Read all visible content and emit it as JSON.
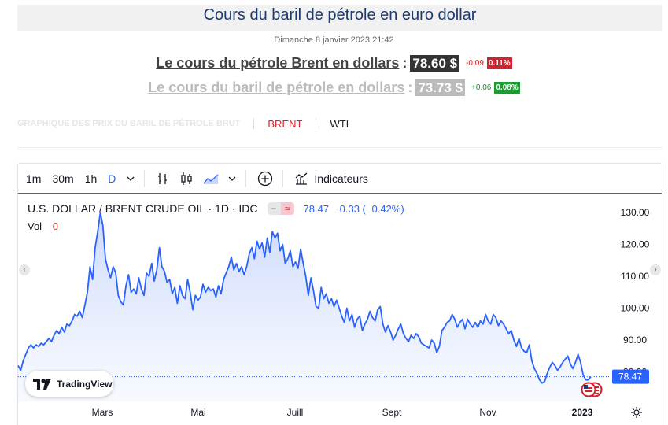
{
  "header": {
    "title": "Cours du baril de pétrole en euro dollar",
    "datetime": "Dimanche 8 janvier 2023 21:42"
  },
  "quotes": [
    {
      "label": "Le cours du pétrole Brent en dollars",
      "colon": ":",
      "price": "78.60 $",
      "change": "-0.09",
      "pct": "0.11%"
    },
    {
      "label": "Le cours du baril de pétrole en dollars",
      "colon": ":",
      "price": "73.73 $",
      "change": "+0.06",
      "pct": "0.08%"
    }
  ],
  "tabs": {
    "heading": "GRAPHIQUE DES PRIX DU BARIL DE PÉTROLE BRUT",
    "items": [
      "BRENT",
      "WTI"
    ],
    "active": "BRENT"
  },
  "toolbar": {
    "intervals": [
      "1m",
      "30m",
      "1h",
      "D"
    ],
    "active_interval": "D",
    "indicators_label": "Indicateurs",
    "icons": [
      "chevron-down-icon",
      "bar-chart-icon",
      "candlestick-icon",
      "area-chart-icon",
      "add-circle-icon",
      "indicators-icon"
    ]
  },
  "legend": {
    "symbol": "U.S. DOLLAR / BRENT CRUDE OIL · 1D · IDC",
    "pill_left": "−",
    "pill_right": "≈",
    "last": "78.47",
    "change": "−0.33 (−0.42%)",
    "vol_label": "Vol",
    "vol_value": "0"
  },
  "branding": {
    "name": "TradingView",
    "logo_text": "TV"
  },
  "colors": {
    "line": "#2962ff",
    "title": "#1d3a6e",
    "down": "#d6202b",
    "up": "#1d9a34",
    "active_tab": "#d6202b"
  },
  "chart_data": {
    "type": "area",
    "series": [
      {
        "values": [
          82,
          80.5,
          83.5,
          85.5,
          87.5,
          88.5,
          87.5,
          88.5,
          88,
          89,
          88.5,
          89.5,
          90.5,
          89.5,
          91.5,
          93,
          92,
          94,
          92.5,
          95,
          94.5,
          96,
          98,
          97.5,
          99,
          97,
          101,
          105,
          113,
          109,
          119,
          124,
          130,
          126,
          115.5,
          112,
          109.5,
          113,
          111,
          104,
          102,
          101,
          107,
          110.5,
          105,
          106,
          104.5,
          109.5,
          106,
          104,
          111,
          110,
          114,
          108.5,
          112,
          119,
          113,
          111.5,
          108,
          109,
          104.5,
          106.5,
          101.5,
          107,
          104,
          103,
          109,
          105,
          99.5,
          104,
          102.5,
          103.5,
          107.5,
          105,
          106.5,
          105.5,
          106,
          103.5,
          107,
          104.5,
          109,
          111,
          113,
          116,
          112,
          114,
          111.5,
          113,
          110.5,
          113,
          117,
          119,
          115.5,
          121,
          118.5,
          120.5,
          116,
          122,
          117.5,
          124,
          122,
          123.5,
          118,
          120,
          114,
          115.5,
          118,
          113,
          114.5,
          112.5,
          118.5,
          114,
          110,
          104,
          109.5,
          105.5,
          100.5,
          100,
          106.5,
          103,
          104.5,
          101.5,
          103,
          100.5,
          102.5,
          100,
          97.5,
          95.5,
          100,
          96,
          98,
          94,
          96.5,
          97.5,
          93,
          95,
          96.5,
          99,
          97,
          96,
          99.5,
          100.5,
          95,
          92.5,
          94.5,
          92.5,
          90,
          91.5,
          93.5,
          95,
          92,
          90.5,
          89.5,
          91.5,
          90.5,
          92,
          91,
          89,
          88.5,
          88,
          87.5,
          90,
          89,
          86,
          88,
          93,
          94,
          95.5,
          96,
          98,
          96.5,
          94,
          95.5,
          96.5,
          93.5,
          96.5,
          95,
          94,
          95.5,
          94,
          96,
          95,
          98,
          96,
          95,
          98,
          97,
          94.5,
          96,
          95,
          93.5,
          92,
          93,
          90,
          88,
          90.5,
          87.5,
          86.5,
          86,
          88.5,
          83.5,
          81,
          79.5,
          77.5,
          76.5,
          77,
          79.5,
          81.5,
          83,
          82,
          80.5,
          81.5,
          83,
          84,
          85,
          82.5,
          81,
          83,
          85.5,
          83,
          79,
          77.5,
          77.5,
          78.5
        ]
      }
    ],
    "x_tick_labels": [
      "Mars",
      "Mai",
      "Juill",
      "Sept",
      "Nov",
      "2023"
    ],
    "y_tick_labels": [
      "130.00",
      "120.00",
      "110.00",
      "100.00",
      "90.00",
      "80.00"
    ],
    "ylim": [
      73,
      136
    ],
    "last_value_label": "78.47",
    "grid": false
  }
}
